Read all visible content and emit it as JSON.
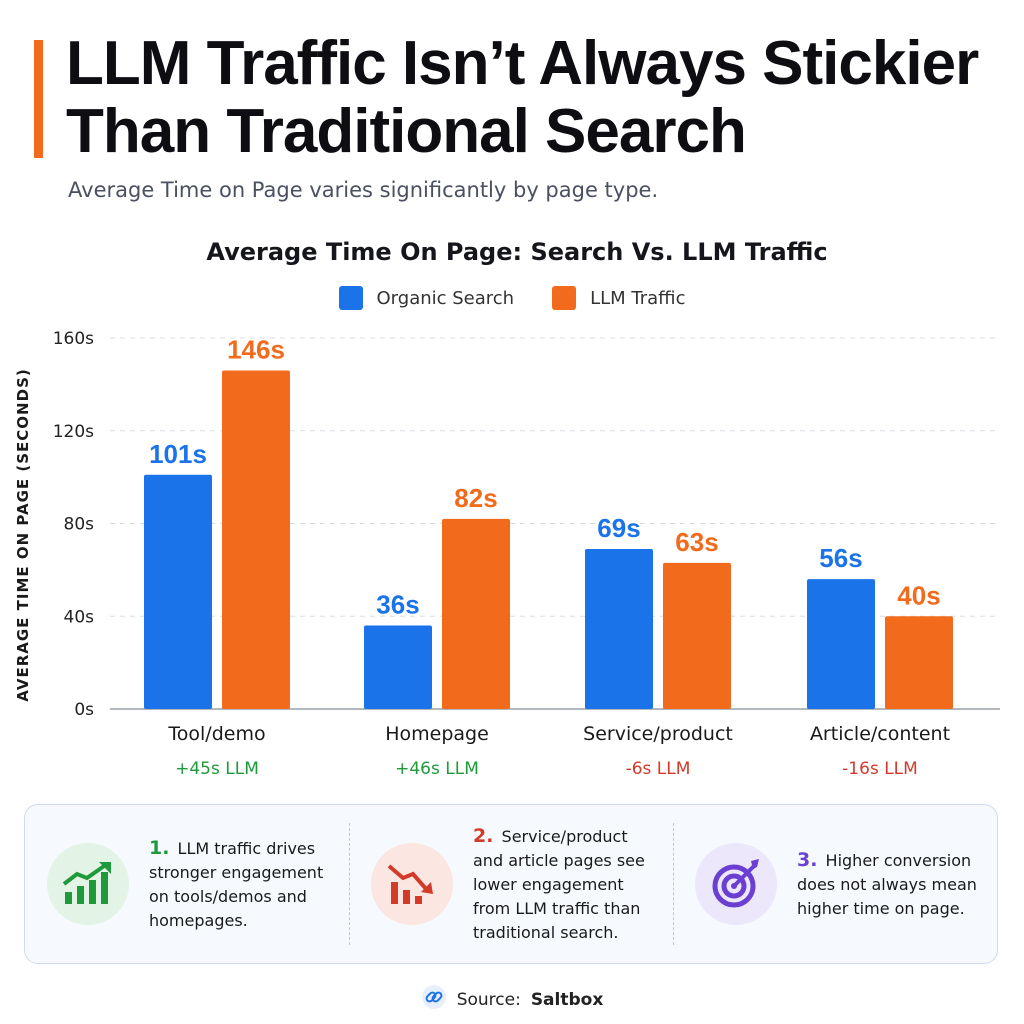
{
  "header": {
    "title": "LLM Traffic Isn’t Always Stickier Than Traditional Search",
    "subtitle": "Average Time on Page varies significantly by page type."
  },
  "colors": {
    "accent": "#f26b1d",
    "organic": "#1a73e8",
    "llm": "#f26b1d",
    "positive": "#1e9a3a",
    "negative": "#d23a2a",
    "purple": "#6a3fd1"
  },
  "chart_data": {
    "type": "bar",
    "title": "Average Time On Page: Search Vs. LLM Traffic",
    "ylabel": "AVERAGE TIME ON PAGE (SECONDS)",
    "xlabel": "",
    "ylim": [
      0,
      160
    ],
    "yticks": [
      0,
      40,
      80,
      120,
      160
    ],
    "ytick_labels": [
      "0s",
      "40s",
      "80s",
      "120s",
      "160s"
    ],
    "grid": true,
    "legend_position": "top-center",
    "categories": [
      "Tool/demo",
      "Homepage",
      "Service/product",
      "Article/content"
    ],
    "series": [
      {
        "name": "Organic Search",
        "values": [
          101,
          36,
          69,
          56
        ],
        "labels": [
          "101s",
          "36s",
          "69s",
          "56s"
        ]
      },
      {
        "name": "LLM Traffic",
        "values": [
          146,
          82,
          63,
          40
        ],
        "labels": [
          "146s",
          "82s",
          "63s",
          "40s"
        ]
      }
    ],
    "differences": [
      "+45s LLM",
      "+46s LLM",
      "-6s LLM",
      "-16s LLM"
    ],
    "difference_sign": [
      "positive",
      "positive",
      "negative",
      "negative"
    ]
  },
  "insights": [
    {
      "number": "1.",
      "text": "LLM traffic drives stronger engagement on tools/demos and homepages.",
      "icon": "growth-chart-icon"
    },
    {
      "number": "2.",
      "text": "Service/product and article pages see lower engagement from LLM traffic than traditional search.",
      "icon": "decline-chart-icon"
    },
    {
      "number": "3.",
      "text": "Higher conversion does not always mean higher time on page.",
      "icon": "target-icon"
    }
  ],
  "source": {
    "label": "Source:",
    "name": "Saltbox",
    "icon": "link-icon"
  }
}
